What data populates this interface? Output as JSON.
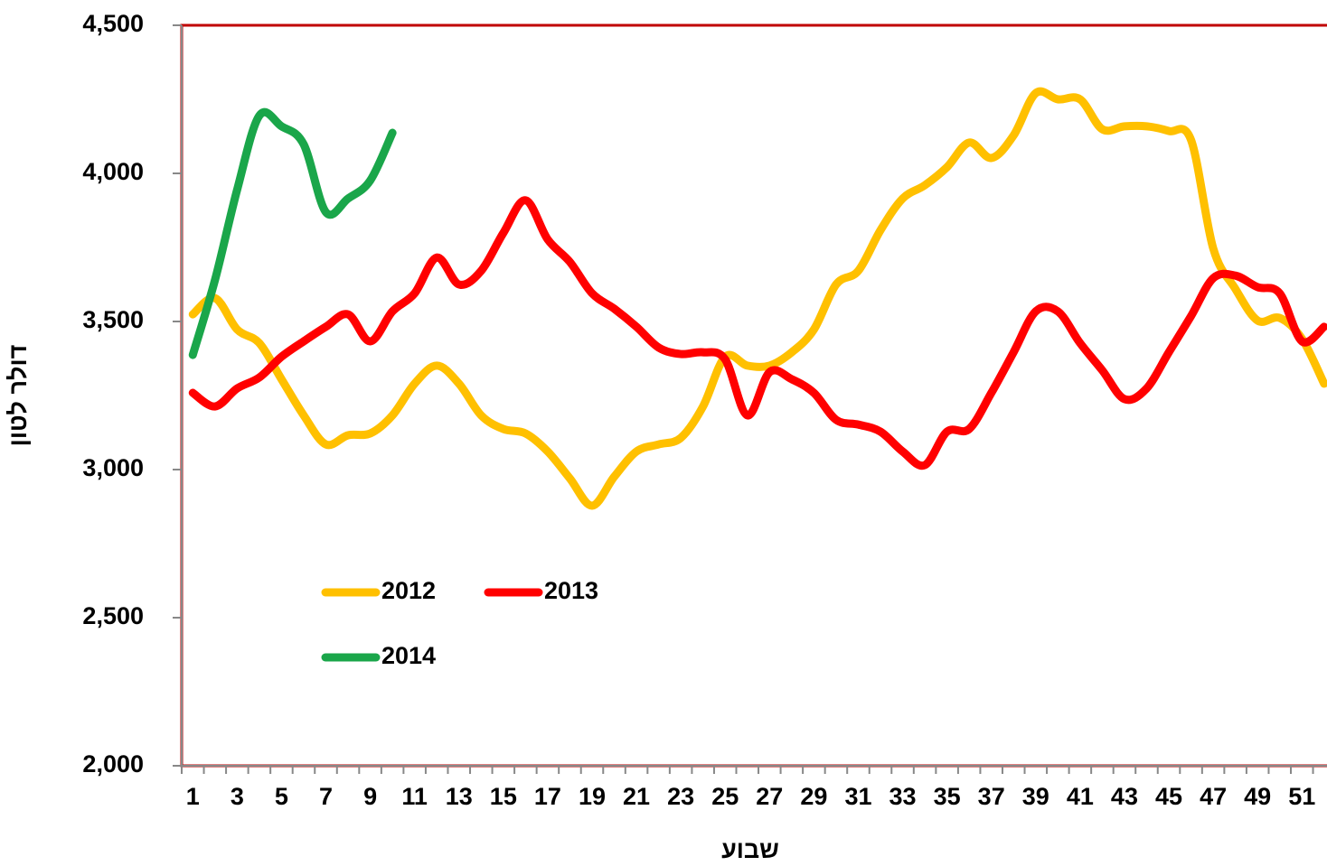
{
  "chart_data": {
    "type": "line",
    "xlabel": "שבוע",
    "ylabel": "דולר לטון",
    "categories": [
      1,
      null,
      3,
      null,
      5,
      null,
      7,
      null,
      9,
      null,
      11,
      null,
      13,
      null,
      15,
      null,
      17,
      null,
      19,
      null,
      21,
      null,
      23,
      null,
      25,
      null,
      27,
      null,
      29,
      null,
      31,
      null,
      33,
      null,
      35,
      null,
      37,
      null,
      39,
      null,
      41,
      null,
      43,
      null,
      45,
      null,
      47,
      null,
      49,
      null,
      51,
      null
    ],
    "ylim": [
      2000,
      4500
    ],
    "yticks": [
      {
        "value": 2000,
        "label": "2,000"
      },
      {
        "value": 2500,
        "label": "2,500"
      },
      {
        "value": 3000,
        "label": "3,000"
      },
      {
        "value": 3500,
        "label": "3,500"
      },
      {
        "value": 4000,
        "label": "4,000"
      },
      {
        "value": 4500,
        "label": "4,500"
      }
    ],
    "legend": "lower-left",
    "series": [
      {
        "name": "2012",
        "color": "#ffc000",
        "values": [
          3524,
          3579,
          3473,
          3427,
          3305,
          3183,
          3085,
          3116,
          3122,
          3183,
          3290,
          3351,
          3290,
          3183,
          3137,
          3122,
          3061,
          2970,
          2878,
          2976,
          3061,
          3085,
          3107,
          3213,
          3381,
          3351,
          3351,
          3396,
          3473,
          3625,
          3671,
          3808,
          3915,
          3960,
          4021,
          4104,
          4052,
          4128,
          4271,
          4250,
          4250,
          4149,
          4159,
          4159,
          4143,
          4113,
          3747,
          3610,
          3503,
          3512,
          3442,
          3290
        ]
      },
      {
        "name": "2013",
        "color": "#ff0000",
        "values": [
          3259,
          3213,
          3274,
          3311,
          3381,
          3433,
          3482,
          3524,
          3433,
          3534,
          3595,
          3716,
          3625,
          3671,
          3799,
          3909,
          3777,
          3701,
          3595,
          3543,
          3482,
          3412,
          3390,
          3396,
          3372,
          3183,
          3329,
          3305,
          3259,
          3168,
          3152,
          3128,
          3061,
          3015,
          3128,
          3137,
          3259,
          3396,
          3534,
          3534,
          3427,
          3335,
          3238,
          3274,
          3396,
          3518,
          3646,
          3655,
          3616,
          3595,
          3433,
          3482
        ]
      },
      {
        "name": "2014",
        "color": "#1aa64a",
        "values": [
          3387,
          3640,
          3945,
          4195,
          4159,
          4098,
          3869,
          3915,
          3976,
          4137,
          null,
          null,
          null,
          null,
          null,
          null,
          null,
          null,
          null,
          null,
          null,
          null,
          null,
          null,
          null,
          null,
          null,
          null,
          null,
          null,
          null,
          null,
          null,
          null,
          null,
          null,
          null,
          null,
          null,
          null,
          null,
          null,
          null,
          null,
          null,
          null,
          null,
          null,
          null,
          null,
          null,
          null
        ]
      }
    ]
  }
}
